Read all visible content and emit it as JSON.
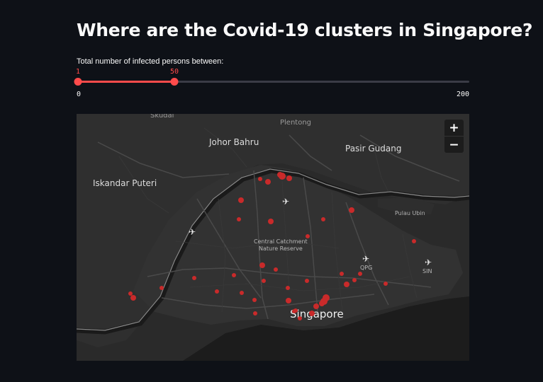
{
  "page": {
    "title": "Where are the Covid-19 clusters in Singapore?"
  },
  "slider": {
    "label": "Total number of infected persons between:",
    "min": 0,
    "max": 200,
    "low": 1,
    "high": 50,
    "min_label": "0",
    "max_label": "200",
    "low_label": "1",
    "high_label": "50",
    "accent": "#ff4b4b"
  },
  "map": {
    "zoom_in": "+",
    "zoom_out": "−",
    "labels": {
      "skudai": "Skudai",
      "plentong": "Plentong",
      "johor_bahru": "Johor Bahru",
      "pasir_gudang": "Pasir Gudang",
      "iskandar_puteri": "Iskandar Puteri",
      "pulau_ubin": "Pulau Ubin",
      "central_catchment_1": "Central Catchment",
      "central_catchment_2": "Nature Reserve",
      "qpg": "QPG",
      "sin": "SIN",
      "singapore": "Singapore"
    },
    "airport_icon": "plane-icon",
    "cluster_color": "#c92a2a"
  }
}
